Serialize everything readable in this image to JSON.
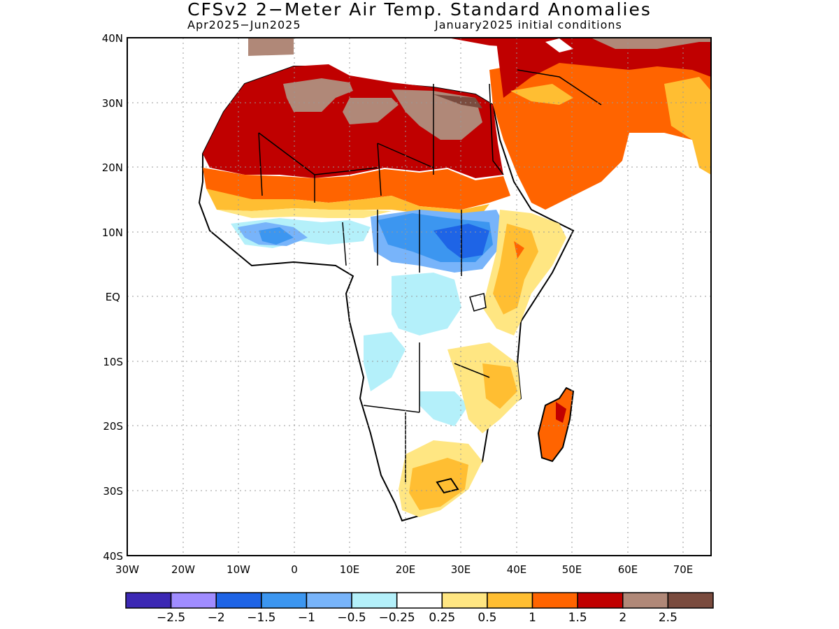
{
  "title": "CFSv2 2−Meter Air Temp. Standard Anomalies",
  "subtitle_left": "Apr2025−Jun2025",
  "subtitle_right": "January2025 initial conditions",
  "lat_labels": [
    "40N",
    "30N",
    "20N",
    "10N",
    "EQ",
    "10S",
    "20S",
    "30S",
    "40S"
  ],
  "lon_labels": [
    "30W",
    "20W",
    "10W",
    "0",
    "10E",
    "20E",
    "30E",
    "40E",
    "50E",
    "60E",
    "70E"
  ],
  "colorbar": {
    "colors": [
      "#3c28b4",
      "#a08cff",
      "#1e64e6",
      "#3c96f0",
      "#78b4fa",
      "#b4f0fa",
      "#ffffff",
      "#ffe682",
      "#ffbe32",
      "#ff6400",
      "#c00000",
      "#b08878",
      "#7a4b3e"
    ],
    "labels": [
      "−2.5",
      "−2",
      "−1.5",
      "−1",
      "−0.5",
      "−0.25",
      "0.25",
      "0.5",
      "1",
      "1.5",
      "2",
      "2.5"
    ]
  }
}
